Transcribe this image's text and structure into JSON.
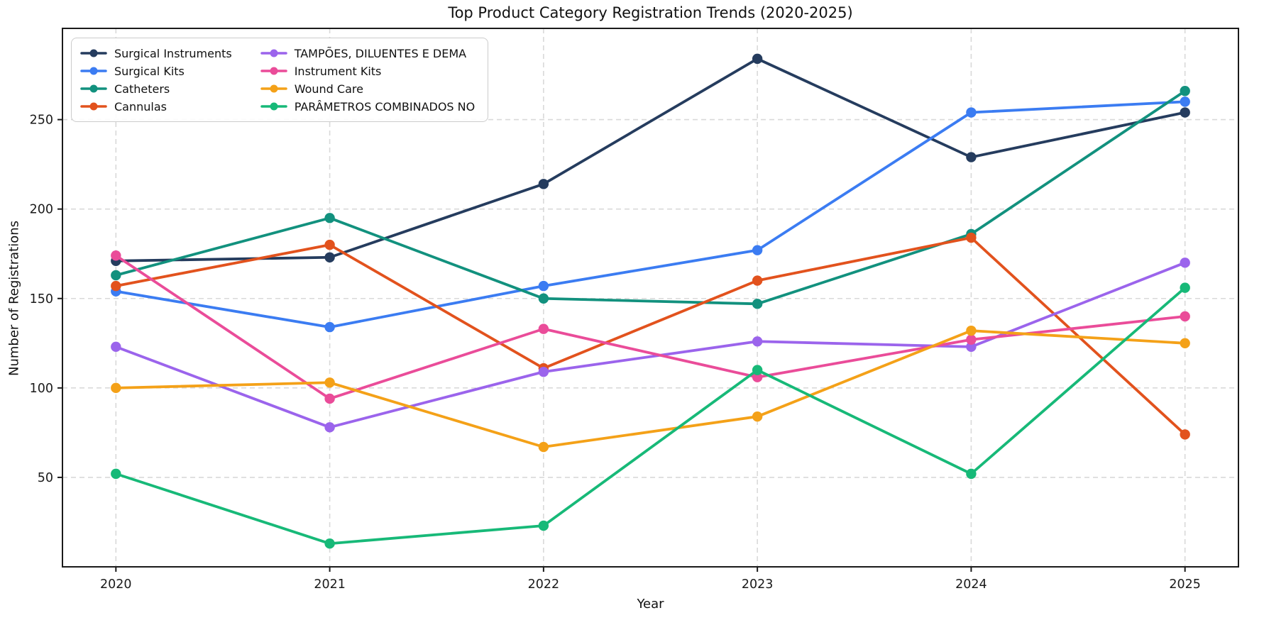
{
  "chart_data": {
    "type": "line",
    "title": "Top Product Category Registration Trends (2020-2025)",
    "xlabel": "Year",
    "ylabel": "Number of Registrations",
    "x": [
      2020,
      2021,
      2022,
      2023,
      2024,
      2025
    ],
    "x_tick_labels": [
      "2020",
      "2021",
      "2022",
      "2023",
      "2024",
      "2025"
    ],
    "y_ticks": [
      50,
      100,
      150,
      200,
      250
    ],
    "xlim": [
      2019.75,
      2025.25
    ],
    "ylim": [
      0,
      301
    ],
    "grid": "dashed, both axes, light gray",
    "legend_position": "upper left, 2 columns",
    "marker": "circle",
    "series": [
      {
        "name": "Surgical Instruments",
        "color": "#253c5e",
        "values": [
          171,
          173,
          214,
          284,
          229,
          254
        ]
      },
      {
        "name": "Surgical Kits",
        "color": "#3b7cf2",
        "values": [
          154,
          134,
          157,
          177,
          254,
          260
        ]
      },
      {
        "name": "Catheters",
        "color": "#12917e",
        "values": [
          163,
          195,
          150,
          147,
          186,
          266
        ]
      },
      {
        "name": "Cannulas",
        "color": "#e2521d",
        "values": [
          157,
          180,
          111,
          160,
          184,
          74
        ]
      },
      {
        "name": "TAMPÕES, DILUENTES E DEMA",
        "color": "#9b64ec",
        "values": [
          123,
          78,
          109,
          126,
          123,
          170
        ]
      },
      {
        "name": "Instrument Kits",
        "color": "#ea4c99",
        "values": [
          174,
          94,
          133,
          106,
          127,
          140
        ]
      },
      {
        "name": "Wound Care",
        "color": "#f4a118",
        "values": [
          100,
          103,
          67,
          84,
          132,
          125
        ]
      },
      {
        "name": "PARÂMETROS COMBINADOS NO",
        "color": "#17b978",
        "values": [
          52,
          13,
          23,
          110,
          52,
          156
        ]
      }
    ],
    "style": {
      "grid_color": "#d9d9d9",
      "spine_color": "#1a1a1a",
      "tick_label_color": "#1a1a1a",
      "background": "#ffffff"
    }
  }
}
